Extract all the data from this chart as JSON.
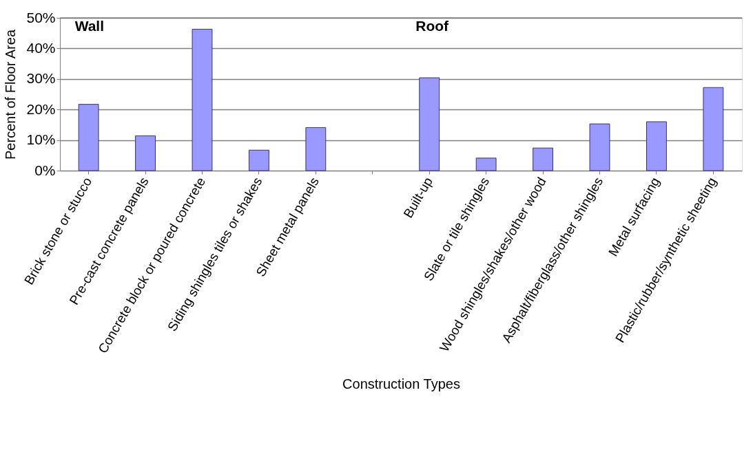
{
  "chart_data": {
    "type": "bar",
    "xlabel": "Construction Types",
    "ylabel": "Percent of Floor Area",
    "categories": [
      "Brick  stone  or stucco",
      "Pre-cast concrete panels",
      "Concrete block or poured concrete",
      "Siding  shingles  tiles  or shakes",
      "Sheet metal panels",
      null,
      "Built-up",
      "Slate or tile shingles",
      "Wood shingles/shakes/other wood",
      "Asphalt/fiberglass/other shingles",
      "Metal surfacing",
      "Plastic/rubber/synthetic sheeting"
    ],
    "values": [
      21.7,
      11.4,
      46.3,
      6.7,
      14.1,
      null,
      30.4,
      4.1,
      7.4,
      15.3,
      16.0,
      27.2
    ],
    "color": "#9999ff",
    "ylim": [
      0,
      50
    ],
    "yticks": [
      {
        "value": 0,
        "label": "0%"
      },
      {
        "value": 10,
        "label": "10%"
      },
      {
        "value": 20,
        "label": "20%"
      },
      {
        "value": 30,
        "label": "30%"
      },
      {
        "value": 40,
        "label": "40%"
      },
      {
        "value": 50,
        "label": "50%"
      }
    ],
    "grid": "y",
    "annotations": [
      "Wall",
      "Roof"
    ]
  }
}
